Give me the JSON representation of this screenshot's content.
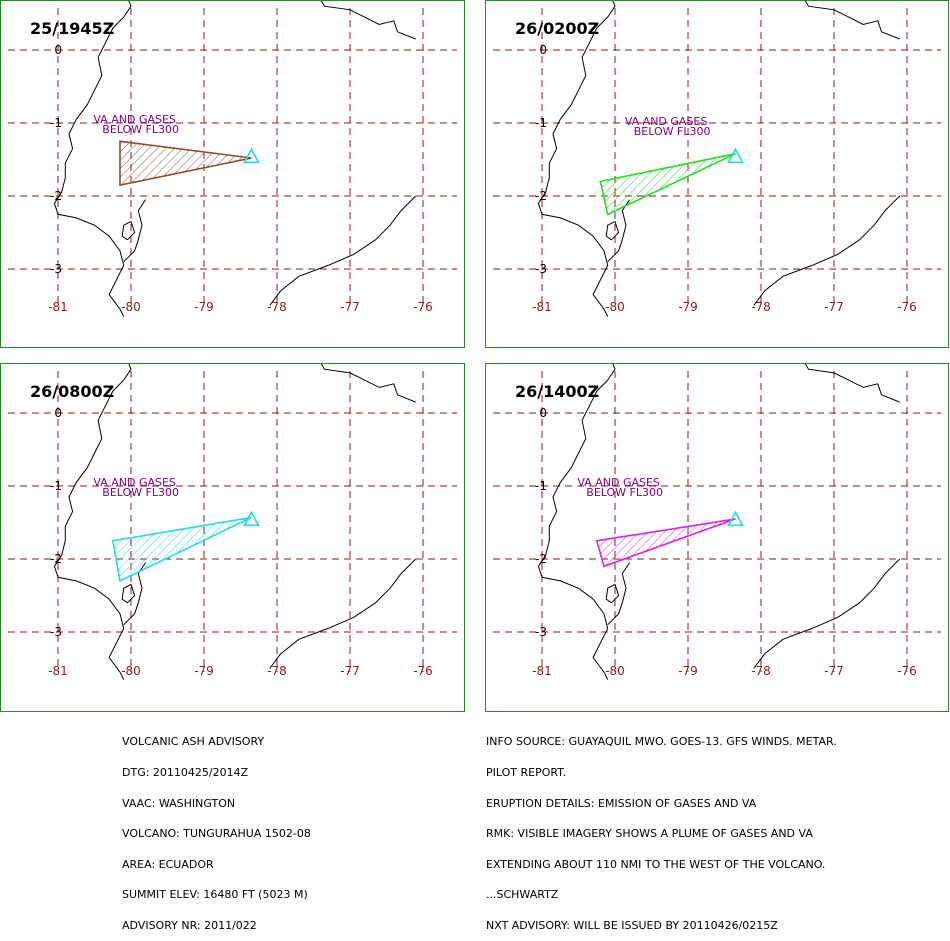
{
  "panels": [
    {
      "time": "25/1945Z",
      "color": "#8b4a2b",
      "polygon": [
        [
          -80.15,
          -1.25
        ],
        [
          -78.35,
          -1.48
        ],
        [
          -80.15,
          -1.85
        ]
      ]
    },
    {
      "time": "26/0200Z",
      "color": "#22dd22",
      "polygon": [
        [
          -80.2,
          -1.8
        ],
        [
          -78.35,
          -1.42
        ],
        [
          -80.1,
          -2.25
        ]
      ]
    },
    {
      "time": "26/0800Z",
      "color": "#22dddd",
      "polygon": [
        [
          -80.25,
          -1.75
        ],
        [
          -78.35,
          -1.43
        ],
        [
          -80.15,
          -2.3
        ]
      ]
    },
    {
      "time": "26/1400Z",
      "color": "#dd22dd",
      "polygon": [
        [
          -80.25,
          -1.75
        ],
        [
          -78.35,
          -1.45
        ],
        [
          -80.15,
          -2.1
        ]
      ]
    }
  ],
  "plume_label": {
    "line1": "VA AND GASES",
    "line2": "BELOW FL300"
  },
  "volcano_marker_color": "#22dddd",
  "axes": {
    "lon_ticks": [
      "-81",
      "-80",
      "-79",
      "-78",
      "-77",
      "-76"
    ],
    "lat_ticks": [
      "0",
      "-1",
      "-2",
      "-3"
    ]
  },
  "advisory_left": [
    "VOLCANIC ASH ADVISORY",
    "DTG: 20110425/2014Z",
    "VAAC: WASHINGTON",
    "VOLCANO: TUNGURAHUA 1502-08",
    "AREA: ECUADOR",
    "SUMMIT ELEV: 16480 FT (5023 M)",
    "ADVISORY NR: 2011/022"
  ],
  "advisory_right": [
    "INFO SOURCE: GUAYAQUIL MWO. GOES-13. GFS WINDS. METAR.",
    "PILOT REPORT.",
    "ERUPTION DETAILS: EMISSION OF GASES AND VA",
    "RMK: VISIBLE IMAGERY SHOWS A PLUME OF GASES AND VA",
    "EXTENDING ABOUT 110 NMI TO THE WEST OF THE VOLCANO.",
    "...SCHWARTZ",
    "NXT ADVISORY: WILL BE ISSUED BY 20110426/0215Z"
  ],
  "colors": {
    "frame": "#2a8a2a",
    "grid": "#8b1a1a",
    "tick_label": "#8b1a1a",
    "label": "#800080"
  }
}
